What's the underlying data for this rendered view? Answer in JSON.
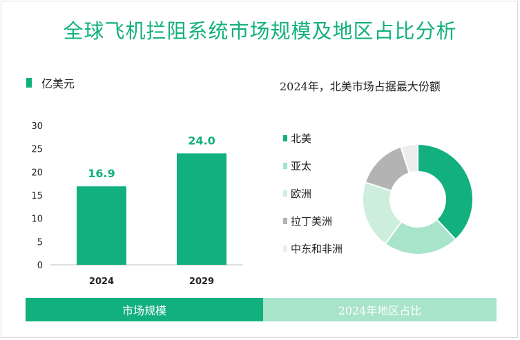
{
  "title": "全球飞机拦阻系统市场规模及地区占比分析",
  "colors": {
    "accent": "#12b07e",
    "accent_light": "#a7e4c9"
  },
  "chart_data": [
    {
      "type": "bar",
      "unit_label": "亿美元",
      "categories": [
        "2024",
        "2029"
      ],
      "values": [
        16.9,
        24.0
      ],
      "value_labels": [
        "16.9",
        "24.0"
      ],
      "ylim": [
        0,
        30
      ],
      "yticks": [
        "0",
        "5",
        "10",
        "15",
        "20",
        "25",
        "30"
      ],
      "grid": false,
      "color": "#12b07e"
    },
    {
      "type": "pie",
      "donut": true,
      "title": "2024年，北美市场占据最大份额",
      "labels": [
        "北美",
        "亚太",
        "欧洲",
        "拉丁美洲",
        "中东和非洲"
      ],
      "values": [
        38,
        22,
        20,
        15,
        5
      ],
      "colors": [
        "#12b07e",
        "#a7e4c9",
        "#cdeedd",
        "#b3b3b3",
        "#ededed"
      ],
      "legend_position": "left"
    }
  ],
  "tabs": [
    "市场规模",
    "2024年地区占比"
  ]
}
